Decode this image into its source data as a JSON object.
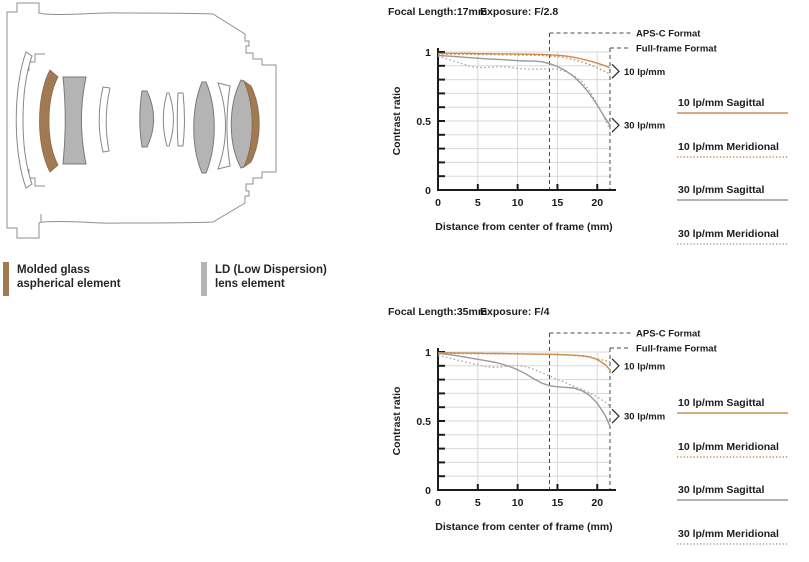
{
  "lens": {
    "legend": [
      {
        "line1": "Molded glass",
        "line2": "aspherical element",
        "swatch": "#a17a54"
      },
      {
        "line1": "LD (Low Dispersion)",
        "line2": "lens element",
        "swatch": "#b4b4b4"
      }
    ]
  },
  "colors": {
    "orange_curve": "#c98e4f",
    "gray_curve": "#999999",
    "gray_dotted_curve": "#a6a6a6",
    "grid": "#d8d8d8",
    "axis": "#1c1c1c",
    "marker_dash": "#4a4a4a"
  },
  "chart_data": [
    {
      "type": "line",
      "title_focal": "Focal Length:17mm",
      "title_exposure": "Exposure: F/2.8",
      "xlabel": "Distance from center of frame (mm)",
      "ylabel": "Contrast ratio",
      "xlim": [
        0,
        21.6
      ],
      "ylim": [
        0,
        1
      ],
      "x_ticks": [
        0,
        5,
        10,
        15,
        20
      ],
      "y_tick_labels": [
        {
          "v": 1,
          "label": "1"
        },
        {
          "v": 0.5,
          "label": "0.5"
        },
        {
          "v": 0,
          "label": "0"
        }
      ],
      "grid": true,
      "legend_position": "right",
      "format_markers": [
        {
          "label": "APS-C Format",
          "x": 14
        },
        {
          "label": "Full-frame Format",
          "x": 21.6
        }
      ],
      "annotations": [
        {
          "label": "10 lp/mm",
          "value": 0.86
        },
        {
          "label": "30 lp/mm",
          "value": 0.47
        }
      ],
      "x": [
        0,
        1,
        2,
        3,
        4,
        5,
        6,
        7,
        8,
        9,
        10,
        11,
        12,
        13,
        14,
        15,
        16,
        17,
        18,
        19,
        20,
        21,
        21.6
      ],
      "series": [
        {
          "name": "10 lp/mm Sagittal",
          "color": "#c98e4f",
          "dash": "solid",
          "values": [
            0.99,
            0.99,
            0.99,
            0.99,
            0.989,
            0.988,
            0.988,
            0.987,
            0.986,
            0.986,
            0.985,
            0.984,
            0.983,
            0.982,
            0.98,
            0.977,
            0.971,
            0.962,
            0.95,
            0.936,
            0.919,
            0.9,
            0.885
          ]
        },
        {
          "name": "10 lp/mm Meridional",
          "color": "#c98e4f",
          "dash": "dotted",
          "values": [
            0.985,
            0.985,
            0.984,
            0.984,
            0.983,
            0.982,
            0.982,
            0.981,
            0.98,
            0.979,
            0.978,
            0.977,
            0.976,
            0.974,
            0.972,
            0.967,
            0.958,
            0.946,
            0.93,
            0.91,
            0.885,
            0.858,
            0.84
          ]
        },
        {
          "name": "30 lp/mm Sagittal",
          "color": "#999999",
          "dash": "solid",
          "values": [
            0.975,
            0.972,
            0.968,
            0.963,
            0.959,
            0.955,
            0.951,
            0.948,
            0.945,
            0.941,
            0.937,
            0.935,
            0.934,
            0.93,
            0.916,
            0.895,
            0.865,
            0.825,
            0.77,
            0.7,
            0.615,
            0.52,
            0.47
          ]
        },
        {
          "name": "30 lp/mm Meridional",
          "color": "#a6a6a6",
          "dash": "dotted",
          "values": [
            0.97,
            0.953,
            0.935,
            0.915,
            0.898,
            0.888,
            0.887,
            0.892,
            0.894,
            0.889,
            0.882,
            0.877,
            0.875,
            0.877,
            0.879,
            0.874,
            0.858,
            0.832,
            0.79,
            0.722,
            0.622,
            0.51,
            0.44
          ]
        }
      ]
    },
    {
      "type": "line",
      "title_focal": "Focal Length:35mm",
      "title_exposure": "Exposure: F/4",
      "xlabel": "Distance from center of frame (mm)",
      "ylabel": "Contrast ratio",
      "xlim": [
        0,
        21.6
      ],
      "ylim": [
        0,
        1
      ],
      "x_ticks": [
        0,
        5,
        10,
        15,
        20
      ],
      "y_tick_labels": [
        {
          "v": 1,
          "label": "1"
        },
        {
          "v": 0.5,
          "label": "0.5"
        },
        {
          "v": 0,
          "label": "0"
        }
      ],
      "grid": true,
      "legend_position": "right",
      "format_markers": [
        {
          "label": "APS-C Format",
          "x": 14
        },
        {
          "label": "Full-frame Format",
          "x": 21.6
        }
      ],
      "annotations": [
        {
          "label": "10 lp/mm",
          "value": 0.9
        },
        {
          "label": "30 lp/mm",
          "value": 0.535
        }
      ],
      "x": [
        0,
        1,
        2,
        3,
        4,
        5,
        6,
        7,
        8,
        9,
        10,
        11,
        12,
        13,
        14,
        15,
        16,
        17,
        18,
        19,
        20,
        21,
        21.6
      ],
      "series": [
        {
          "name": "10 lp/mm Sagittal",
          "color": "#c98e4f",
          "dash": "solid",
          "values": [
            0.995,
            0.994,
            0.993,
            0.992,
            0.991,
            0.991,
            0.99,
            0.989,
            0.989,
            0.988,
            0.987,
            0.986,
            0.985,
            0.984,
            0.983,
            0.982,
            0.98,
            0.977,
            0.973,
            0.965,
            0.946,
            0.908,
            0.87
          ]
        },
        {
          "name": "10 lp/mm Meridional",
          "color": "#c98e4f",
          "dash": "dotted",
          "values": [
            0.99,
            0.99,
            0.989,
            0.989,
            0.988,
            0.988,
            0.987,
            0.987,
            0.986,
            0.986,
            0.985,
            0.985,
            0.984,
            0.983,
            0.982,
            0.981,
            0.978,
            0.975,
            0.97,
            0.962,
            0.95,
            0.938,
            0.93
          ]
        },
        {
          "name": "30 lp/mm Sagittal",
          "color": "#999999",
          "dash": "solid",
          "values": [
            0.99,
            0.984,
            0.976,
            0.967,
            0.957,
            0.947,
            0.937,
            0.927,
            0.913,
            0.895,
            0.872,
            0.842,
            0.807,
            0.775,
            0.756,
            0.748,
            0.744,
            0.739,
            0.722,
            0.688,
            0.628,
            0.54,
            0.462
          ]
        },
        {
          "name": "30 lp/mm Meridional",
          "color": "#a6a6a6",
          "dash": "dotted",
          "values": [
            0.975,
            0.962,
            0.948,
            0.934,
            0.92,
            0.906,
            0.894,
            0.889,
            0.893,
            0.899,
            0.902,
            0.895,
            0.875,
            0.851,
            0.827,
            0.803,
            0.778,
            0.753,
            0.73,
            0.704,
            0.674,
            0.638,
            0.607
          ]
        }
      ]
    }
  ]
}
